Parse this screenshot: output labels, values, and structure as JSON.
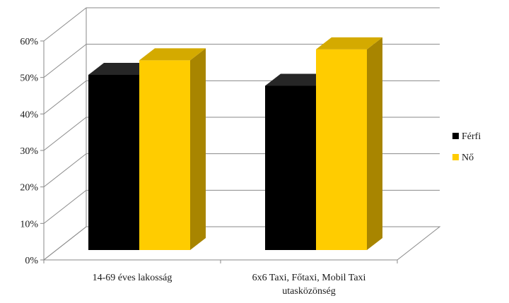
{
  "chart_data": {
    "type": "bar",
    "style": "3d-clustered-column",
    "categories": [
      "14-69 éves lakosság",
      "6x6 Taxi, Főtaxi, Mobil Taxi utasközönség"
    ],
    "category_lines": [
      [
        "14-69 éves lakosság"
      ],
      [
        "6x6 Taxi, Főtaxi, Mobil Taxi",
        "utasközönség"
      ]
    ],
    "series": [
      {
        "name": "Férfi",
        "values": [
          48,
          45
        ],
        "color": "#000000",
        "side_color": "#141414",
        "top_color": "#262626"
      },
      {
        "name": "Nő",
        "values": [
          52,
          55
        ],
        "color": "#ffcc00",
        "side_color": "#a88500",
        "top_color": "#d4aa00"
      }
    ],
    "ylim": [
      0,
      60
    ],
    "yticks": [
      0,
      10,
      20,
      30,
      40,
      50,
      60
    ],
    "ytick_labels": [
      "0%",
      "10%",
      "20%",
      "30%",
      "40%",
      "50%",
      "60%"
    ],
    "grid": true,
    "legend_position": "right",
    "title": "",
    "xlabel": "",
    "ylabel": ""
  }
}
